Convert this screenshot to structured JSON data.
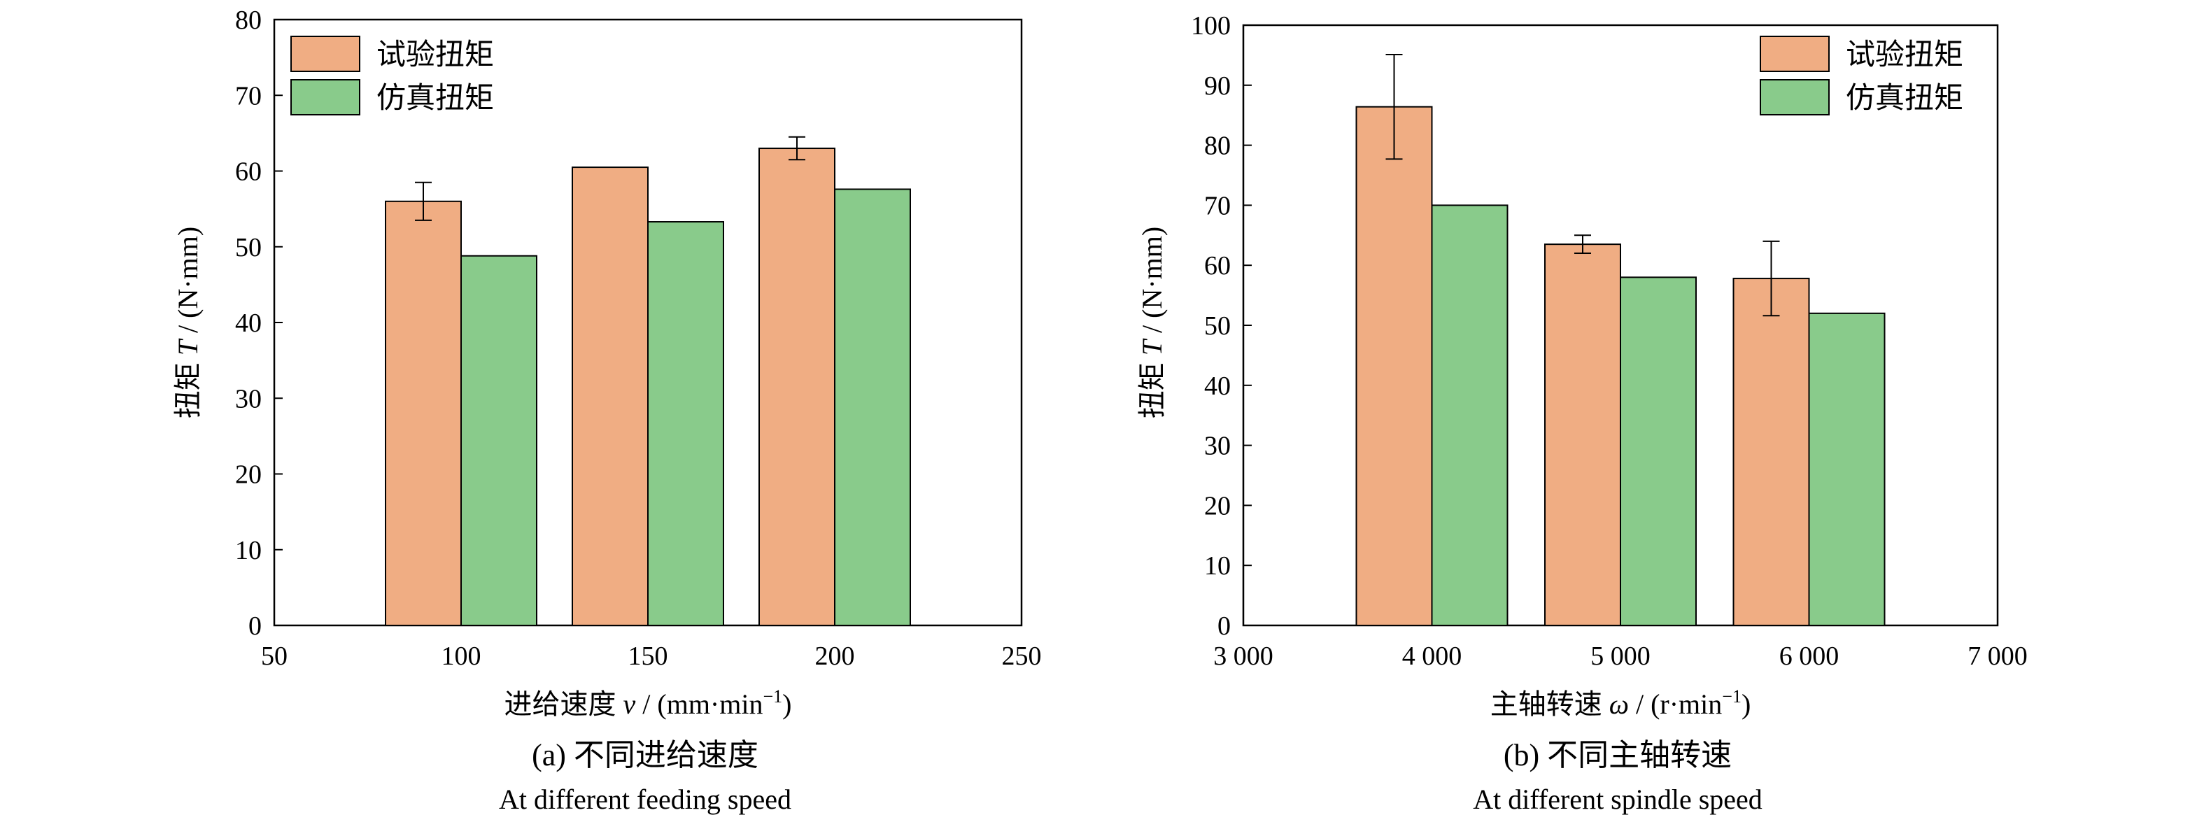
{
  "chart_data": [
    {
      "type": "bar",
      "panel": "a",
      "x": [
        100,
        150,
        200
      ],
      "xlim": [
        50,
        250
      ],
      "xticks": [
        50,
        100,
        150,
        200,
        250
      ],
      "xtick_labels": [
        "50",
        "100",
        "150",
        "200",
        "250"
      ],
      "ylim": [
        0,
        80
      ],
      "yticks": [
        0,
        10,
        20,
        30,
        40,
        50,
        60,
        70,
        80
      ],
      "ytick_labels": [
        "0",
        "10",
        "20",
        "30",
        "40",
        "50",
        "60",
        "70",
        "80"
      ],
      "xlabel_main": "进给速度 ",
      "xlabel_var": "v",
      "xlabel_unit": " / (mm·min",
      "xlabel_sup": "−1",
      "xlabel_end": ")",
      "ylabel_main": "扭矩 ",
      "ylabel_var": "T",
      "ylabel_unit": " / (N·mm)",
      "series": [
        {
          "name": "试验扭矩",
          "color": "#f0ad83",
          "values": [
            56.0,
            60.5,
            63.0
          ],
          "errors": [
            2.5,
            null,
            1.5
          ]
        },
        {
          "name": "仿真扭矩",
          "color": "#89cb8b",
          "values": [
            48.8,
            53.3,
            57.6
          ],
          "errors": [
            null,
            null,
            null
          ]
        }
      ],
      "legend_position": "top-left",
      "caption": "(a) 不同进给速度",
      "caption_en": "At different feeding speed"
    },
    {
      "type": "bar",
      "panel": "b",
      "x": [
        4000,
        5000,
        6000
      ],
      "xlim": [
        3000,
        7000
      ],
      "xticks": [
        3000,
        4000,
        5000,
        6000,
        7000
      ],
      "xtick_labels": [
        "3 000",
        "4 000",
        "5 000",
        "6 000",
        "7 000"
      ],
      "ylim": [
        0,
        100
      ],
      "yticks": [
        0,
        10,
        20,
        30,
        40,
        50,
        60,
        70,
        80,
        90,
        100
      ],
      "ytick_labels": [
        "0",
        "10",
        "20",
        "30",
        "40",
        "50",
        "60",
        "70",
        "80",
        "90",
        "100"
      ],
      "xlabel_main": "主轴转速 ",
      "xlabel_var": "ω",
      "xlabel_unit": " / (r·min",
      "xlabel_sup": "−1",
      "xlabel_end": ")",
      "ylabel_main": "扭矩 ",
      "ylabel_var": "T",
      "ylabel_unit": " / (N·mm)",
      "series": [
        {
          "name": "试验扭矩",
          "color": "#f0ad83",
          "values": [
            86.4,
            63.5,
            57.8
          ],
          "errors": [
            8.7,
            1.5,
            6.2
          ]
        },
        {
          "name": "仿真扭矩",
          "color": "#89cb8b",
          "values": [
            70.0,
            58.0,
            52.0
          ],
          "errors": [
            null,
            null,
            null
          ]
        }
      ],
      "legend_position": "top-right",
      "caption": "(b) 不同主轴转速",
      "caption_en": "At different spindle speed"
    }
  ]
}
